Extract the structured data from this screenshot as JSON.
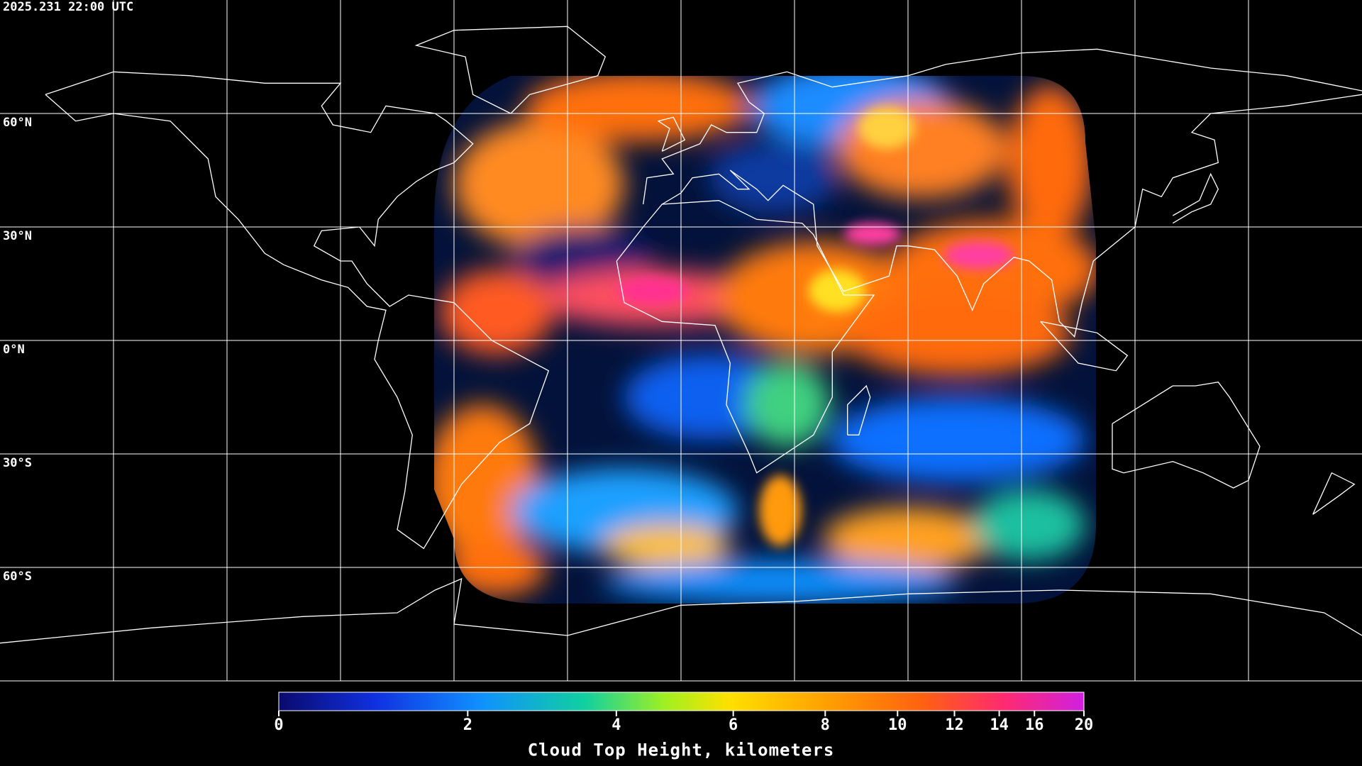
{
  "header": {
    "timestamp": "2025.231 22:00 UTC"
  },
  "map": {
    "lat_lines": [
      {
        "value": 60,
        "label": "60°N"
      },
      {
        "value": 30,
        "label": "30°N"
      },
      {
        "value": 0,
        "label": "0°N"
      },
      {
        "value": -30,
        "label": "30°S"
      },
      {
        "value": -60,
        "label": "60°S"
      }
    ],
    "lon_lines": [
      -150,
      -120,
      -90,
      -60,
      -30,
      0,
      30,
      60,
      90,
      120,
      150
    ]
  },
  "colorbar": {
    "label": "Cloud Top Height, kilometers",
    "clim": [
      0,
      20
    ],
    "ticks": [
      0,
      2,
      4,
      6,
      8,
      10,
      12,
      14,
      16,
      20
    ]
  }
}
